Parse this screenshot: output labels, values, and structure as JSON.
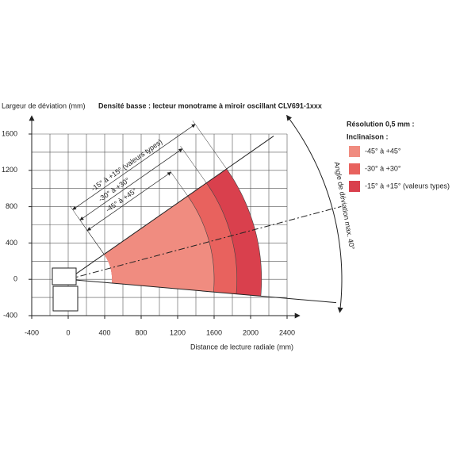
{
  "chart_data": {
    "type": "reading-field",
    "title": "Densité basse : lecteur monotrame à miroir oscillant CLV691-1xxx",
    "y_label": "Largeur de déviation (mm)",
    "x_label": "Distance de lecture radiale (mm)",
    "angle_label": "Angle de déviation max. 40°",
    "legend_title": "Résolution 0,5 mm :",
    "legend_subtitle": "Inclinaison :",
    "xlim": [
      -400,
      2400
    ],
    "ylim": [
      -400,
      1600
    ],
    "xticks": [
      -400,
      0,
      400,
      800,
      1200,
      1600,
      2000,
      2400
    ],
    "yticks": [
      -400,
      0,
      400,
      800,
      1200,
      1600
    ],
    "xgrid": [
      -400,
      -200,
      0,
      200,
      400,
      600,
      800,
      1000,
      1200,
      1400,
      1600,
      1800,
      2000,
      2200,
      2400
    ],
    "ygrid": [
      -400,
      -200,
      0,
      200,
      400,
      600,
      800,
      1000,
      1200,
      1400,
      1600
    ],
    "grid": true,
    "field": {
      "angle_min": -5,
      "angle_max": 35,
      "axis_angle": 15
    },
    "series": [
      {
        "name": "-15° à +15° (valeurs types)",
        "color": "#d9404d",
        "r_min": 480,
        "r_max": 2120
      },
      {
        "name": "-30° à +30°",
        "color": "#e8625e",
        "r_min": 480,
        "r_max": 1850
      },
      {
        "name": "-45° à +45°",
        "color": "#f08c80",
        "r_min": 480,
        "r_max": 1600
      }
    ]
  }
}
